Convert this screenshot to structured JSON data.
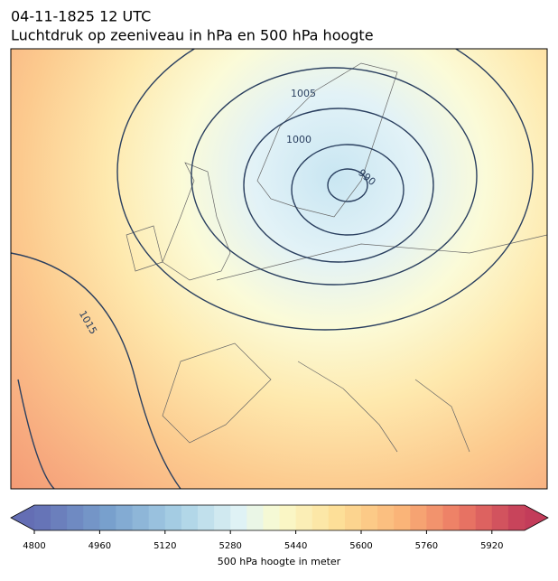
{
  "title": "04-11-1825 12 UTC",
  "subtitle": "Luchtdruk op zeeniveau in hPa en 500 hPa hoogte",
  "contour_labels": [
    "1005",
    "1000",
    "990",
    "1015"
  ],
  "colorbar": {
    "label": "500 hPa hoogte in meter",
    "lim": [
      4800,
      6000
    ],
    "ticks": [
      4800,
      4960,
      5120,
      5280,
      5440,
      5600,
      5760,
      5920
    ]
  }
}
